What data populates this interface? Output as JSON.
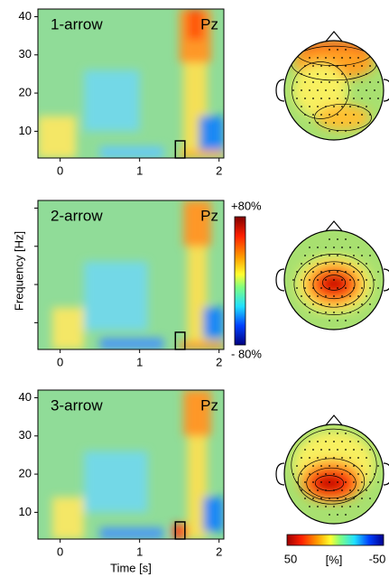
{
  "chart_data": [
    {
      "type": "heatmap",
      "label": "1-arrow",
      "channel": "Pz",
      "xlim": [
        -0.28,
        2.06
      ],
      "ylim": [
        3,
        42
      ],
      "xticks": [
        0,
        1,
        2
      ],
      "yticks": [
        10,
        20,
        30,
        40
      ],
      "ytick_labels": true
    },
    {
      "type": "heatmap",
      "label": "2-arrow",
      "channel": "Pz",
      "xlim": [
        -0.28,
        2.06
      ],
      "ylim": [
        3,
        42
      ],
      "xticks": [
        0,
        1,
        2
      ],
      "yticks": [
        10,
        20,
        30,
        40
      ],
      "ytick_labels": false
    },
    {
      "type": "heatmap",
      "label": "3-arrow",
      "channel": "Pz",
      "xlim": [
        -0.28,
        2.06
      ],
      "ylim": [
        3,
        42
      ],
      "xticks": [
        0,
        1,
        2
      ],
      "yticks": [
        10,
        20,
        30,
        40
      ],
      "ytick_labels": true
    }
  ],
  "ylabel": "Frequency [Hz]",
  "xlabel": "Time [s]",
  "colorbar": {
    "max_label": "+80%",
    "min_label": "- 80%"
  },
  "topo_colorbar": {
    "labels": [
      "50",
      "[%]",
      "-50"
    ]
  }
}
